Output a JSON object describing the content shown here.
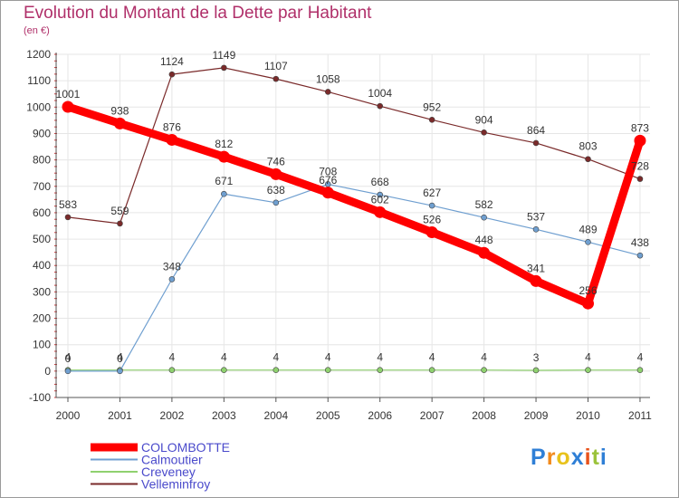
{
  "header": {
    "title": "Evolution du Montant de la Dette par Habitant",
    "unit": "(en €)"
  },
  "logo": {
    "text": "Proxiti"
  },
  "chart_data": {
    "type": "line",
    "title": "Evolution du Montant de la Dette par Habitant",
    "ylabel": "(en €)",
    "xlabel": "",
    "x": [
      "2000",
      "2001",
      "2002",
      "2003",
      "2004",
      "2005",
      "2006",
      "2007",
      "2008",
      "2009",
      "2010",
      "2011"
    ],
    "ylim": [
      -100,
      1200
    ],
    "yticks": [
      -100,
      0,
      100,
      200,
      300,
      400,
      500,
      600,
      700,
      800,
      900,
      1000,
      1100,
      1200
    ],
    "grid": true,
    "legend_position": "bottom-left",
    "series": [
      {
        "name": "COLOMBOTTE",
        "color": "#ff0000",
        "values": [
          1001,
          938,
          876,
          812,
          746,
          676,
          602,
          526,
          448,
          341,
          256,
          873
        ]
      },
      {
        "name": "Calmoutier",
        "color": "#6f9fd0",
        "values": [
          0,
          0,
          348,
          671,
          638,
          708,
          668,
          627,
          582,
          537,
          489,
          438
        ]
      },
      {
        "name": "Creveney",
        "color": "#8fd16f",
        "values": [
          4,
          4,
          4,
          4,
          4,
          4,
          4,
          4,
          4,
          3,
          4,
          4
        ]
      },
      {
        "name": "Velleminfroy",
        "color": "#7a2a2a",
        "values": [
          583,
          559,
          1124,
          1149,
          1107,
          1058,
          1004,
          952,
          904,
          864,
          803,
          728
        ]
      }
    ]
  }
}
